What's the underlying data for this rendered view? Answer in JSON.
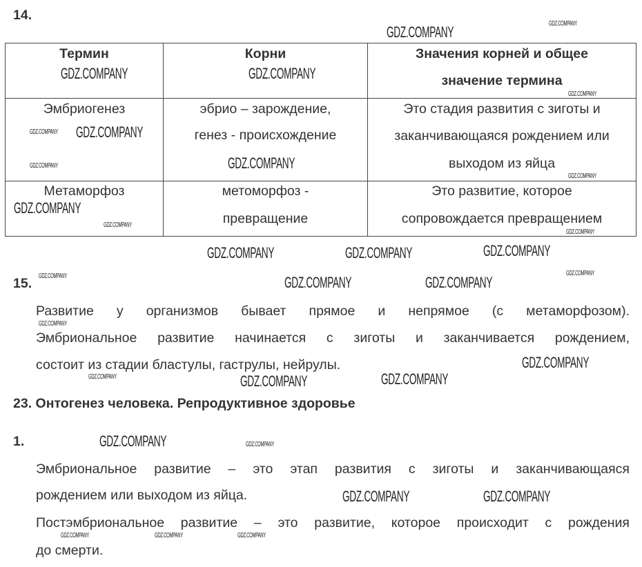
{
  "watermark": "GDZ.COMPANY",
  "task14": {
    "number": "14.",
    "table": {
      "headers": [
        "Термин",
        "Корни",
        [
          "Значения корней и общее",
          "значение термина"
        ]
      ],
      "rows": [
        {
          "term": "Эмбриогенез",
          "roots": [
            "эбрио – зарождение,",
            "генез - происхождение"
          ],
          "meaning": [
            "Это стадия развития с зиготы и",
            "заканчивающаяся рождением или",
            "выходом из яйца"
          ]
        },
        {
          "term": "Метаморфоз",
          "roots": [
            "метоморфоз -",
            "превращение"
          ],
          "meaning": [
            "Это развитие, которое",
            "сопровождается превращением"
          ]
        }
      ]
    }
  },
  "task15": {
    "number": "15.",
    "lines": [
      "Развитие у организмов бывает прямое и непрямое (с метаморфозом).",
      "Эмбриональное развитие начинается с зиготы и заканчивается рождением,",
      "состоит из стадии бластулы, гаструлы, нейрулы."
    ]
  },
  "section": {
    "title": "23. Онтогенез человека. Репродуктивное здоровье"
  },
  "task1": {
    "number": "1.",
    "lines": [
      "Эмбриональное развитие – это этап развития с зиготы и заканчивающаяся",
      "рождением или выходом из яйца.",
      "Постэмбриональное развитие – это развитие, которое происходит с рождения",
      "до смерти."
    ]
  }
}
